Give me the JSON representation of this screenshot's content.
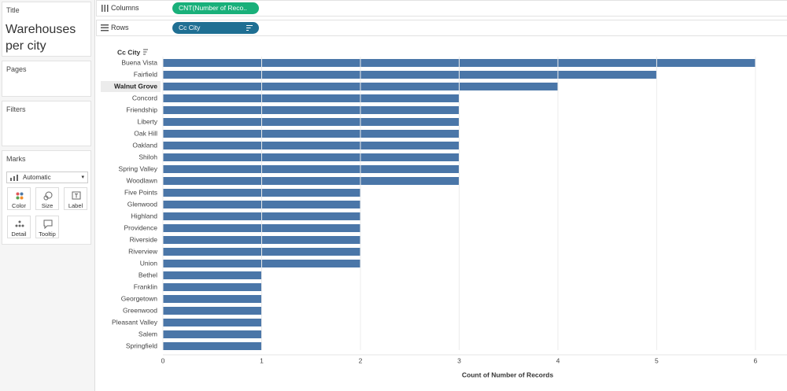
{
  "sidebar": {
    "title_card": {
      "label": "Title",
      "text": "Warehouses per city"
    },
    "pages_card": {
      "label": "Pages"
    },
    "filters_card": {
      "label": "Filters"
    },
    "marks_card": {
      "label": "Marks",
      "mark_type": "Automatic",
      "buttons": [
        "Color",
        "Size",
        "Label",
        "Detail",
        "Tooltip"
      ]
    }
  },
  "shelves": {
    "columns": {
      "label": "Columns",
      "pill": "CNT(Number of Reco.."
    },
    "rows": {
      "label": "Rows",
      "pill": "Cc City"
    }
  },
  "chart_data": {
    "type": "bar",
    "orientation": "horizontal",
    "row_header": "Cc City",
    "x_label": "Count of Number of Records",
    "categories": [
      "Buena Vista",
      "Fairfield",
      "Walnut Grove",
      "Concord",
      "Friendship",
      "Liberty",
      "Oak Hill",
      "Oakland",
      "Shiloh",
      "Spring Valley",
      "Woodlawn",
      "Five Points",
      "Glenwood",
      "Highland",
      "Providence",
      "Riverside",
      "Riverview",
      "Union",
      "Bethel",
      "Franklin",
      "Georgetown",
      "Greenwood",
      "Pleasant Valley",
      "Salem",
      "Springfield"
    ],
    "values": [
      6,
      5,
      4,
      3,
      3,
      3,
      3,
      3,
      3,
      3,
      3,
      2,
      2,
      2,
      2,
      2,
      2,
      2,
      1,
      1,
      1,
      1,
      1,
      1,
      1
    ],
    "color": "#4a76a8",
    "xlim": [
      0,
      6.2
    ],
    "xticks": [
      0,
      1,
      2,
      3,
      4,
      5,
      6
    ],
    "grid": true
  }
}
